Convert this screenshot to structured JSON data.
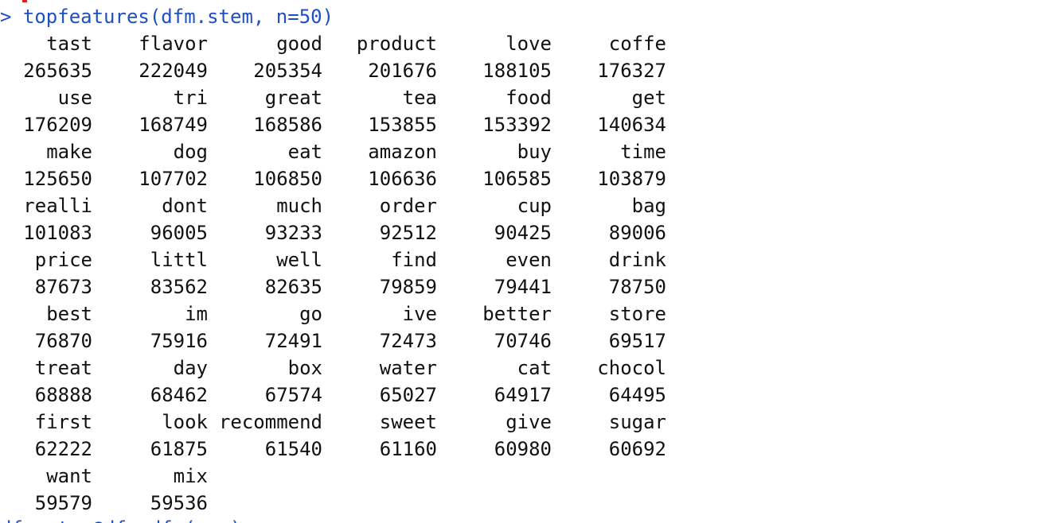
{
  "console": {
    "prompt_char": ">",
    "command": "topfeatures(dfm.stem, n=50)",
    "next_line_partial": "dfm.stem@dfm.dfm(...)"
  },
  "output": {
    "rows": [
      {
        "terms": [
          "tast",
          "flavor",
          "good",
          "product",
          "love",
          "coffe"
        ],
        "counts": [
          "265635",
          "222049",
          "205354",
          "201676",
          "188105",
          "176327"
        ]
      },
      {
        "terms": [
          "use",
          "tri",
          "great",
          "tea",
          "food",
          "get"
        ],
        "counts": [
          "176209",
          "168749",
          "168586",
          "153855",
          "153392",
          "140634"
        ]
      },
      {
        "terms": [
          "make",
          "dog",
          "eat",
          "amazon",
          "buy",
          "time"
        ],
        "counts": [
          "125650",
          "107702",
          "106850",
          "106636",
          "106585",
          "103879"
        ]
      },
      {
        "terms": [
          "realli",
          "dont",
          "much",
          "order",
          "cup",
          "bag"
        ],
        "counts": [
          "101083",
          "96005",
          "93233",
          "92512",
          "90425",
          "89006"
        ]
      },
      {
        "terms": [
          "price",
          "littl",
          "well",
          "find",
          "even",
          "drink"
        ],
        "counts": [
          "87673",
          "83562",
          "82635",
          "79859",
          "79441",
          "78750"
        ]
      },
      {
        "terms": [
          "best",
          "im",
          "go",
          "ive",
          "better",
          "store"
        ],
        "counts": [
          "76870",
          "75916",
          "72491",
          "72473",
          "70746",
          "69517"
        ]
      },
      {
        "terms": [
          "treat",
          "day",
          "box",
          "water",
          "cat",
          "chocol"
        ],
        "counts": [
          "68888",
          "68462",
          "67574",
          "65027",
          "64917",
          "64495"
        ]
      },
      {
        "terms": [
          "first",
          "look",
          "recommend",
          "sweet",
          "give",
          "sugar"
        ],
        "counts": [
          "62222",
          "61875",
          "61540",
          "61160",
          "60980",
          "60692"
        ]
      },
      {
        "terms": [
          "want",
          "mix"
        ],
        "counts": [
          "59579",
          "59536"
        ]
      }
    ]
  }
}
